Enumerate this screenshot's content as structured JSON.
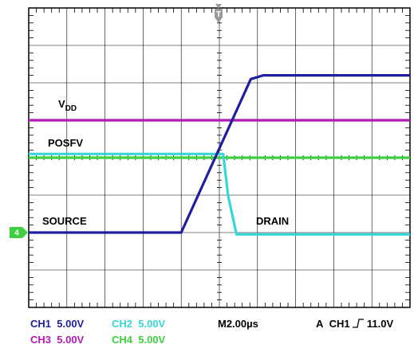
{
  "chart_data": {
    "type": "line",
    "x_unit": "µs",
    "y_unit": "V",
    "time_per_div": 2,
    "volts_per_div": 5,
    "xlim": [
      -10,
      10
    ],
    "ylim": [
      -2,
      6
    ],
    "trigger_marker": "T",
    "series": [
      {
        "name": "VDD",
        "channel": "CH3",
        "color": "#b41ab4",
        "x": [
          -10,
          10
        ],
        "y": [
          3,
          3
        ]
      },
      {
        "name": "POSFV",
        "channel": "CH4",
        "color": "#3fcf3f",
        "x": [
          -10,
          10
        ],
        "y": [
          2,
          2
        ]
      },
      {
        "name": "DRAIN",
        "channel": "CH2",
        "color": "#36d6d6",
        "x": [
          -10,
          0.2,
          0.45,
          0.9,
          2.2,
          10
        ],
        "y": [
          2.1,
          2.1,
          1.0,
          -0.05,
          -0.05,
          -0.05
        ]
      },
      {
        "name": "SOURCE",
        "channel": "CH1",
        "color": "#1f1f9f",
        "x": [
          -10,
          -2.0,
          1.65,
          2.3,
          10
        ],
        "y": [
          0,
          0,
          4.1,
          4.2,
          4.2
        ]
      }
    ],
    "channel_marker": {
      "label": "4",
      "color": "#3fcf3f",
      "y": 0
    }
  },
  "annotations": {
    "vdd": {
      "main": "V",
      "sub": "DD"
    },
    "posfv": "POSFV",
    "source": "SOURCE",
    "drain": "DRAIN"
  },
  "readout": {
    "ch1": {
      "name": "CH1",
      "scale": "5.00V",
      "color": "#1f1f9f"
    },
    "ch2": {
      "name": "CH2",
      "scale": "5.00V",
      "color": "#36d6d6"
    },
    "ch3": {
      "name": "CH3",
      "scale": "5.00V",
      "color": "#b41ab4"
    },
    "ch4": {
      "name": "CH4",
      "scale": "5.00V",
      "color": "#3fcf3f"
    },
    "timebase": "M2.00µs",
    "trigger": {
      "mode": "A",
      "channel": "CH1",
      "level": "11.0V"
    }
  }
}
